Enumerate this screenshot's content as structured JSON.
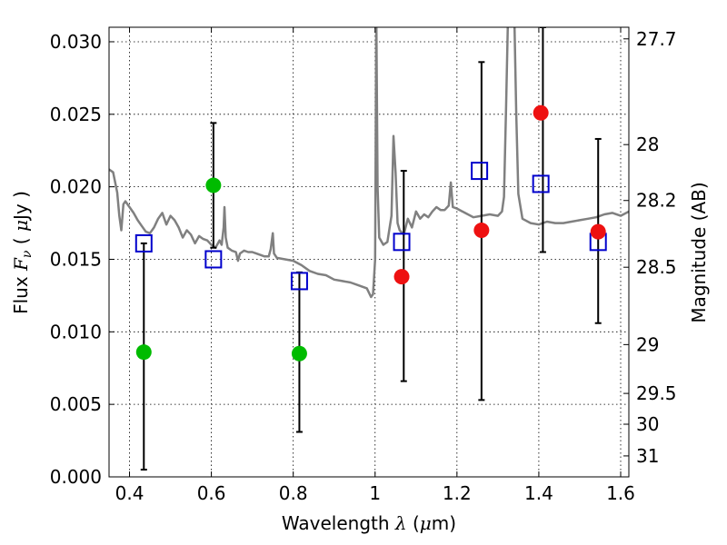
{
  "chart_data": {
    "type": "scatter",
    "xlabel": "Wavelength",
    "xlabel_symbol": "λ",
    "xlabel_unit_open": "(",
    "xlabel_unit_mu": "μ",
    "xlabel_unit_rest": "m)",
    "ylabel": "Flux",
    "ylabel_symbol_F": "F",
    "ylabel_symbol_sub": "ν",
    "ylabel_unit_open": "( ",
    "ylabel_unit_mu": "μ",
    "ylabel_unit_rest": "Jy )",
    "y2label": "Magnitude (AB)",
    "xlim": [
      0.35,
      1.62
    ],
    "ylim": [
      0.0,
      0.031
    ],
    "grid": true,
    "x_ticks": [
      0.4,
      0.6,
      0.8,
      1.0,
      1.2,
      1.4,
      1.6
    ],
    "x_tick_labels": [
      "0.4",
      "0.6",
      "0.8",
      "1",
      "1.2",
      "1.4",
      "1.6"
    ],
    "y_ticks": [
      0.0,
      0.005,
      0.01,
      0.015,
      0.02,
      0.025,
      0.03
    ],
    "y_tick_labels": [
      "0.000",
      "0.005",
      "0.010",
      "0.015",
      "0.020",
      "0.025",
      "0.030"
    ],
    "y2_ticks": [
      {
        "mag": 27.7,
        "label": "27.7"
      },
      {
        "mag": 28.0,
        "label": "28"
      },
      {
        "mag": 28.2,
        "label": "28.2"
      },
      {
        "mag": 28.5,
        "label": "28.5"
      },
      {
        "mag": 29.0,
        "label": "29"
      },
      {
        "mag": 29.5,
        "label": "29.5"
      },
      {
        "mag": 30.0,
        "label": "30"
      },
      {
        "mag": 31.0,
        "label": "31"
      }
    ],
    "series": [
      {
        "type": "line",
        "color": "#808080",
        "points": [
          [
            0.35,
            0.0212
          ],
          [
            0.36,
            0.021
          ],
          [
            0.37,
            0.0196
          ],
          [
            0.375,
            0.018
          ],
          [
            0.38,
            0.017
          ],
          [
            0.385,
            0.0188
          ],
          [
            0.39,
            0.019
          ],
          [
            0.4,
            0.0186
          ],
          [
            0.41,
            0.0182
          ],
          [
            0.42,
            0.0177
          ],
          [
            0.43,
            0.0173
          ],
          [
            0.44,
            0.0169
          ],
          [
            0.45,
            0.0168
          ],
          [
            0.46,
            0.0172
          ],
          [
            0.47,
            0.0178
          ],
          [
            0.48,
            0.0182
          ],
          [
            0.49,
            0.0174
          ],
          [
            0.5,
            0.018
          ],
          [
            0.51,
            0.0177
          ],
          [
            0.52,
            0.0172
          ],
          [
            0.53,
            0.0165
          ],
          [
            0.54,
            0.017
          ],
          [
            0.55,
            0.0167
          ],
          [
            0.56,
            0.0161
          ],
          [
            0.57,
            0.0166
          ],
          [
            0.58,
            0.0164
          ],
          [
            0.59,
            0.0163
          ],
          [
            0.6,
            0.016
          ],
          [
            0.61,
            0.0158
          ],
          [
            0.62,
            0.0163
          ],
          [
            0.625,
            0.016
          ],
          [
            0.63,
            0.0172
          ],
          [
            0.632,
            0.0186
          ],
          [
            0.635,
            0.0165
          ],
          [
            0.64,
            0.0158
          ],
          [
            0.65,
            0.0156
          ],
          [
            0.66,
            0.0155
          ],
          [
            0.665,
            0.0149
          ],
          [
            0.67,
            0.0154
          ],
          [
            0.68,
            0.0156
          ],
          [
            0.69,
            0.0155
          ],
          [
            0.7,
            0.0155
          ],
          [
            0.71,
            0.0154
          ],
          [
            0.72,
            0.0153
          ],
          [
            0.73,
            0.0152
          ],
          [
            0.74,
            0.0152
          ],
          [
            0.745,
            0.0157
          ],
          [
            0.75,
            0.0168
          ],
          [
            0.753,
            0.0154
          ],
          [
            0.76,
            0.0151
          ],
          [
            0.78,
            0.015
          ],
          [
            0.8,
            0.0149
          ],
          [
            0.82,
            0.0146
          ],
          [
            0.84,
            0.0142
          ],
          [
            0.86,
            0.014
          ],
          [
            0.88,
            0.0139
          ],
          [
            0.9,
            0.0136
          ],
          [
            0.92,
            0.0135
          ],
          [
            0.94,
            0.0134
          ],
          [
            0.96,
            0.0132
          ],
          [
            0.98,
            0.013
          ],
          [
            0.99,
            0.0124
          ],
          [
            0.995,
            0.0126
          ],
          [
            1.0,
            0.015
          ],
          [
            1.003,
            0.032
          ],
          [
            1.006,
            0.02
          ],
          [
            1.01,
            0.0165
          ],
          [
            1.02,
            0.016
          ],
          [
            1.03,
            0.0162
          ],
          [
            1.04,
            0.018
          ],
          [
            1.045,
            0.0235
          ],
          [
            1.05,
            0.021
          ],
          [
            1.055,
            0.0175
          ],
          [
            1.06,
            0.017
          ],
          [
            1.07,
            0.0167
          ],
          [
            1.08,
            0.0178
          ],
          [
            1.09,
            0.0172
          ],
          [
            1.1,
            0.0183
          ],
          [
            1.11,
            0.0178
          ],
          [
            1.12,
            0.0181
          ],
          [
            1.13,
            0.0179
          ],
          [
            1.14,
            0.0183
          ],
          [
            1.15,
            0.0186
          ],
          [
            1.16,
            0.0184
          ],
          [
            1.17,
            0.0184
          ],
          [
            1.18,
            0.0187
          ],
          [
            1.185,
            0.0203
          ],
          [
            1.19,
            0.0186
          ],
          [
            1.2,
            0.0185
          ],
          [
            1.22,
            0.0182
          ],
          [
            1.24,
            0.0179
          ],
          [
            1.26,
            0.018
          ],
          [
            1.28,
            0.0181
          ],
          [
            1.3,
            0.018
          ],
          [
            1.31,
            0.0183
          ],
          [
            1.315,
            0.0193
          ],
          [
            1.32,
            0.0255
          ],
          [
            1.325,
            0.032
          ],
          [
            1.33,
            0.032
          ],
          [
            1.34,
            0.032
          ],
          [
            1.345,
            0.025
          ],
          [
            1.35,
            0.0195
          ],
          [
            1.36,
            0.0178
          ],
          [
            1.38,
            0.0175
          ],
          [
            1.4,
            0.0174
          ],
          [
            1.42,
            0.0176
          ],
          [
            1.44,
            0.0175
          ],
          [
            1.46,
            0.0175
          ],
          [
            1.48,
            0.0176
          ],
          [
            1.5,
            0.0177
          ],
          [
            1.52,
            0.0178
          ],
          [
            1.54,
            0.0179
          ],
          [
            1.56,
            0.0181
          ],
          [
            1.58,
            0.0182
          ],
          [
            1.6,
            0.018
          ],
          [
            1.62,
            0.0183
          ]
        ]
      },
      {
        "type": "errorbar",
        "color": "#000000",
        "points": [
          {
            "x": 0.435,
            "low": 0.0005,
            "high": 0.0161
          },
          {
            "x": 0.605,
            "low": 0.0158,
            "high": 0.0244
          },
          {
            "x": 0.815,
            "low": 0.0031,
            "high": 0.0141
          },
          {
            "x": 1.07,
            "low": 0.0066,
            "high": 0.0211
          },
          {
            "x": 1.26,
            "low": 0.0053,
            "high": 0.0286
          },
          {
            "x": 1.41,
            "low": 0.0155,
            "high": 0.031
          },
          {
            "x": 1.545,
            "low": 0.0106,
            "high": 0.0233
          }
        ]
      },
      {
        "type": "scatter",
        "marker": "square",
        "color": "#0000cc",
        "points": [
          [
            0.435,
            0.0161
          ],
          [
            0.605,
            0.015
          ],
          [
            0.815,
            0.0135
          ],
          [
            1.065,
            0.0162
          ],
          [
            1.255,
            0.0211
          ],
          [
            1.405,
            0.0202
          ],
          [
            1.545,
            0.0162
          ]
        ]
      },
      {
        "type": "scatter",
        "marker": "circle",
        "color": "#00bb00",
        "points": [
          [
            0.435,
            0.0086
          ],
          [
            0.605,
            0.0201
          ],
          [
            0.815,
            0.0085
          ]
        ]
      },
      {
        "type": "scatter",
        "marker": "circle",
        "color": "#ee1111",
        "points": [
          [
            1.065,
            0.0138
          ],
          [
            1.26,
            0.017
          ],
          [
            1.405,
            0.0251
          ],
          [
            1.545,
            0.0169
          ]
        ]
      }
    ]
  }
}
